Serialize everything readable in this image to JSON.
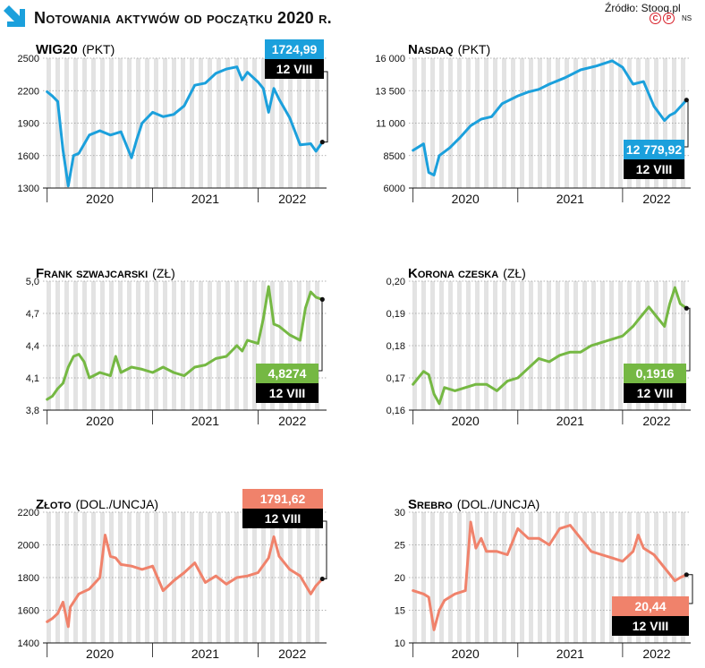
{
  "header": {
    "title": "Notowania aktywów od początku 2020 r.",
    "source": "Źródło: Stooq.pl",
    "credit_letters": [
      "C",
      "P"
    ],
    "author": "NS"
  },
  "colors": {
    "blue": "#1ba0dc",
    "green": "#75b843",
    "salmon": "#f0826b",
    "stripe": "#e3e3e3",
    "box_dark": "#000000"
  },
  "chart_data": [
    {
      "id": "wig20",
      "type": "line",
      "title": "WIG20",
      "unit": "(PKT)",
      "color": "blue",
      "yticks": [
        "2500",
        "2200",
        "1900",
        "1600",
        "1300"
      ],
      "ylim": [
        1300,
        2500
      ],
      "years": [
        "2020",
        "2021",
        "2022"
      ],
      "value_label": "1724,99",
      "date_label": "12 VIII",
      "x": [
        2020.0,
        2020.05,
        2020.1,
        2020.15,
        2020.2,
        2020.25,
        2020.3,
        2020.4,
        2020.5,
        2020.6,
        2020.7,
        2020.8,
        2020.85,
        2020.9,
        2021.0,
        2021.1,
        2021.2,
        2021.3,
        2021.4,
        2021.5,
        2021.6,
        2021.7,
        2021.8,
        2021.85,
        2021.9,
        2022.0,
        2022.05,
        2022.1,
        2022.15,
        2022.2,
        2022.3,
        2022.4,
        2022.5,
        2022.55,
        2022.61
      ],
      "y": [
        2190,
        2150,
        2100,
        1650,
        1320,
        1600,
        1620,
        1790,
        1830,
        1790,
        1820,
        1580,
        1750,
        1900,
        2000,
        1960,
        1980,
        2060,
        2250,
        2270,
        2360,
        2400,
        2420,
        2300,
        2370,
        2280,
        2220,
        2000,
        2220,
        2120,
        1950,
        1700,
        1710,
        1640,
        1725
      ]
    },
    {
      "id": "nasdaq",
      "type": "line",
      "title": "Nasdaq",
      "unit": "(PKT)",
      "color": "blue",
      "yticks": [
        "16 000",
        "13 500",
        "11 000",
        "8500",
        "6000"
      ],
      "ylim": [
        6000,
        16000
      ],
      "years": [
        "2020",
        "2021",
        "2022"
      ],
      "value_label": "12 779,92",
      "date_label": "12 VIII",
      "x": [
        2020.0,
        2020.1,
        2020.15,
        2020.2,
        2020.25,
        2020.35,
        2020.45,
        2020.55,
        2020.65,
        2020.75,
        2020.85,
        2021.0,
        2021.1,
        2021.2,
        2021.3,
        2021.45,
        2021.6,
        2021.75,
        2021.9,
        2022.0,
        2022.1,
        2022.2,
        2022.3,
        2022.4,
        2022.45,
        2022.5,
        2022.61
      ],
      "y": [
        8900,
        9400,
        7200,
        7000,
        8500,
        9100,
        9900,
        10800,
        11300,
        11500,
        12500,
        13100,
        13400,
        13600,
        14000,
        14500,
        15100,
        15400,
        15800,
        15300,
        14000,
        14200,
        12300,
        11200,
        11600,
        11800,
        12780
      ]
    },
    {
      "id": "chf",
      "type": "line",
      "title": "Frank szwajcarski",
      "unit": "(ZŁ)",
      "color": "green",
      "yticks": [
        "5,0",
        "4,7",
        "4,4",
        "4,1",
        "3,8"
      ],
      "ylim": [
        3.8,
        5.0
      ],
      "years": [
        "2020",
        "2021",
        "2022"
      ],
      "value_label": "4,8274",
      "date_label": "12 VIII",
      "x": [
        2020.0,
        2020.05,
        2020.1,
        2020.15,
        2020.2,
        2020.25,
        2020.3,
        2020.35,
        2020.4,
        2020.5,
        2020.6,
        2020.65,
        2020.7,
        2020.8,
        2020.9,
        2021.0,
        2021.1,
        2021.2,
        2021.3,
        2021.4,
        2021.5,
        2021.6,
        2021.7,
        2021.8,
        2021.85,
        2021.9,
        2022.0,
        2022.05,
        2022.1,
        2022.15,
        2022.2,
        2022.3,
        2022.4,
        2022.45,
        2022.5,
        2022.55,
        2022.61
      ],
      "y": [
        3.9,
        3.93,
        4.0,
        4.05,
        4.2,
        4.3,
        4.32,
        4.25,
        4.1,
        4.15,
        4.12,
        4.3,
        4.15,
        4.2,
        4.18,
        4.15,
        4.2,
        4.15,
        4.12,
        4.2,
        4.22,
        4.28,
        4.3,
        4.4,
        4.35,
        4.45,
        4.42,
        4.65,
        4.95,
        4.6,
        4.58,
        4.5,
        4.45,
        4.75,
        4.9,
        4.85,
        4.83
      ]
    },
    {
      "id": "czk",
      "type": "line",
      "title": "Korona czeska",
      "unit": "(ZŁ)",
      "color": "green",
      "yticks": [
        "0,20",
        "0,19",
        "0,18",
        "0,17",
        "0,16"
      ],
      "ylim": [
        0.16,
        0.2
      ],
      "years": [
        "2020",
        "2021",
        "2022"
      ],
      "value_label": "0,1916",
      "date_label": "12 VIII",
      "x": [
        2020.0,
        2020.05,
        2020.1,
        2020.15,
        2020.2,
        2020.25,
        2020.3,
        2020.4,
        2020.5,
        2020.6,
        2020.7,
        2020.8,
        2020.9,
        2021.0,
        2021.1,
        2021.2,
        2021.3,
        2021.4,
        2021.5,
        2021.6,
        2021.7,
        2021.8,
        2021.9,
        2022.0,
        2022.1,
        2022.15,
        2022.2,
        2022.25,
        2022.3,
        2022.4,
        2022.45,
        2022.5,
        2022.55,
        2022.61
      ],
      "y": [
        0.168,
        0.17,
        0.172,
        0.171,
        0.165,
        0.162,
        0.167,
        0.166,
        0.167,
        0.168,
        0.168,
        0.166,
        0.169,
        0.17,
        0.173,
        0.176,
        0.175,
        0.177,
        0.178,
        0.178,
        0.18,
        0.181,
        0.182,
        0.183,
        0.186,
        0.188,
        0.19,
        0.192,
        0.19,
        0.186,
        0.193,
        0.198,
        0.193,
        0.1916
      ]
    },
    {
      "id": "gold",
      "type": "line",
      "title": "Złoto",
      "unit": "(DOL./UNCJA)",
      "color": "salmon",
      "yticks": [
        "2200",
        "2000",
        "1800",
        "1600",
        "1400"
      ],
      "ylim": [
        1400,
        2200
      ],
      "years": [
        "2020",
        "2021",
        "2022"
      ],
      "value_label": "1791,62",
      "date_label": "12 VIII",
      "x": [
        2020.0,
        2020.05,
        2020.1,
        2020.15,
        2020.2,
        2020.22,
        2020.3,
        2020.4,
        2020.5,
        2020.55,
        2020.6,
        2020.65,
        2020.7,
        2020.8,
        2020.9,
        2021.0,
        2021.1,
        2021.2,
        2021.3,
        2021.4,
        2021.5,
        2021.6,
        2021.7,
        2021.8,
        2021.9,
        2022.0,
        2022.1,
        2022.15,
        2022.2,
        2022.3,
        2022.4,
        2022.5,
        2022.55,
        2022.61
      ],
      "y": [
        1530,
        1550,
        1580,
        1650,
        1500,
        1620,
        1700,
        1730,
        1800,
        2060,
        1930,
        1920,
        1880,
        1870,
        1850,
        1870,
        1720,
        1780,
        1830,
        1890,
        1770,
        1810,
        1760,
        1800,
        1810,
        1830,
        1920,
        2050,
        1930,
        1850,
        1810,
        1700,
        1750,
        1792
      ]
    },
    {
      "id": "silver",
      "type": "line",
      "title": "Srebro",
      "unit": "(DOL./UNCJA)",
      "color": "salmon",
      "yticks": [
        "30",
        "25",
        "20",
        "15",
        "10"
      ],
      "ylim": [
        10,
        30
      ],
      "years": [
        "2020",
        "2021",
        "2022"
      ],
      "value_label": "20,44",
      "date_label": "12 VIII",
      "x": [
        2020.0,
        2020.1,
        2020.15,
        2020.2,
        2020.25,
        2020.3,
        2020.4,
        2020.5,
        2020.55,
        2020.6,
        2020.65,
        2020.7,
        2020.8,
        2020.9,
        2021.0,
        2021.1,
        2021.2,
        2021.3,
        2021.4,
        2021.5,
        2021.6,
        2021.7,
        2021.8,
        2021.9,
        2022.0,
        2022.1,
        2022.15,
        2022.2,
        2022.3,
        2022.4,
        2022.5,
        2022.55,
        2022.61
      ],
      "y": [
        18.0,
        17.5,
        17.0,
        12.0,
        15.0,
        16.5,
        17.5,
        18.0,
        28.5,
        24.5,
        26.0,
        24.0,
        24.0,
        23.5,
        27.5,
        26.0,
        26.0,
        25.0,
        27.5,
        28.0,
        26.0,
        24.0,
        23.5,
        23.0,
        22.5,
        24.0,
        26.5,
        24.5,
        23.5,
        21.5,
        19.5,
        20.0,
        20.44
      ]
    }
  ]
}
